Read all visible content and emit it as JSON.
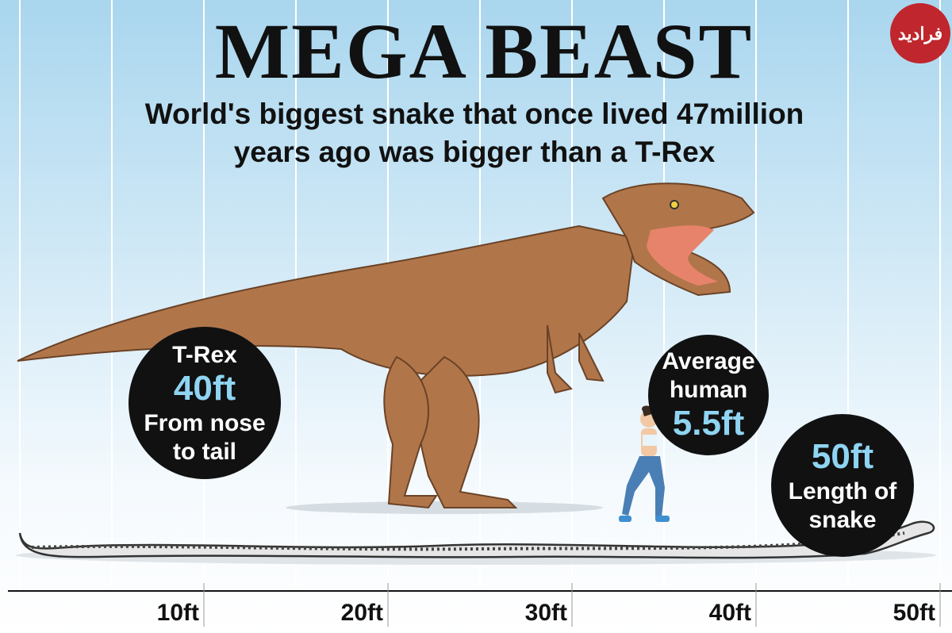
{
  "header": {
    "title": "MEGA BEAST",
    "subtitle_lines": [
      "World's biggest snake that once lived 47million",
      "years ago was bigger than a T-Rex"
    ]
  },
  "logo": "فرادید",
  "callouts": [
    {
      "top": [
        "T-Rex"
      ],
      "value": "40ft",
      "bottom": [
        "From nose",
        "to tail"
      ]
    },
    {
      "top": [
        "Average",
        "human"
      ],
      "value": "5.5ft"
    },
    {
      "value": "50ft",
      "bottom": [
        "Length of",
        "snake"
      ]
    }
  ],
  "scale": [
    "10ft",
    "20ft",
    "30ft",
    "40ft",
    "50ft"
  ]
}
